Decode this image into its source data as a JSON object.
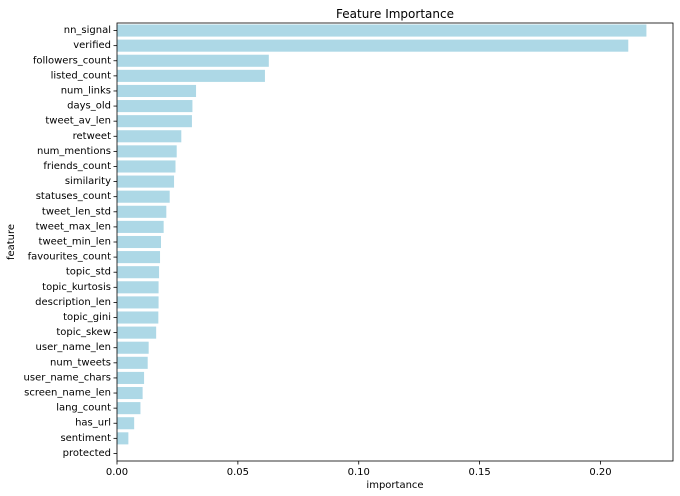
{
  "chart_data": {
    "type": "bar",
    "orientation": "horizontal",
    "title": "Feature Importance",
    "xlabel": "importance",
    "ylabel": "feature",
    "xlim": [
      0,
      0.23
    ],
    "xticks": [
      0.0,
      0.05,
      0.1,
      0.15,
      0.2
    ],
    "xtick_labels": [
      "0.00",
      "0.05",
      "0.10",
      "0.15",
      "0.20"
    ],
    "grid": false,
    "bar_color": "#add8e6",
    "categories": [
      "nn_signal",
      "verified",
      "followers_count",
      "listed_count",
      "num_links",
      "days_old",
      "tweet_av_len",
      "retweet",
      "num_mentions",
      "friends_count",
      "similarity",
      "statuses_count",
      "tweet_len_std",
      "tweet_max_len",
      "tweet_min_len",
      "favourites_count",
      "topic_std",
      "topic_kurtosis",
      "description_len",
      "topic_gini",
      "topic_skew",
      "user_name_len",
      "num_tweets",
      "user_name_chars",
      "screen_name_len",
      "lang_count",
      "has_url",
      "sentiment",
      "protected"
    ],
    "values": [
      0.219,
      0.2115,
      0.0628,
      0.0612,
      0.0327,
      0.0312,
      0.031,
      0.0266,
      0.0247,
      0.0242,
      0.0236,
      0.0218,
      0.0204,
      0.0193,
      0.0182,
      0.0178,
      0.0174,
      0.0172,
      0.0172,
      0.0171,
      0.0162,
      0.0131,
      0.0127,
      0.0112,
      0.0106,
      0.0097,
      0.0071,
      0.0047,
      0.0
    ]
  }
}
